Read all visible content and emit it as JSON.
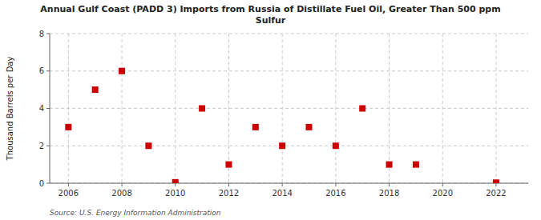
{
  "chart_data": {
    "type": "scatter",
    "title": "Annual Gulf Coast (PADD 3) Imports from Russia of Distillate Fuel Oil, Greater Than 500 ppm\nSulfur",
    "y_label": "Thousand Barrels per Day",
    "annotations": [
      "Source: U.S. Energy Information Administration"
    ],
    "x": [
      2006,
      2007,
      2008,
      2009,
      2010,
      2011,
      2012,
      2013,
      2014,
      2015,
      2016,
      2017,
      2018,
      2019,
      2022
    ],
    "values": [
      3,
      5,
      6,
      2,
      0.05,
      4,
      1,
      3,
      2,
      3,
      2,
      4,
      1,
      1,
      0.03
    ],
    "color": "#cc0000",
    "marker": "square",
    "grid": true,
    "xlim": [
      2005.3,
      2023.2
    ],
    "xticks": [
      2006,
      2008,
      2010,
      2012,
      2014,
      2016,
      2018,
      2020,
      2022
    ],
    "ylim": [
      0,
      8
    ],
    "yticks": [
      0,
      2,
      4,
      6,
      8
    ]
  }
}
